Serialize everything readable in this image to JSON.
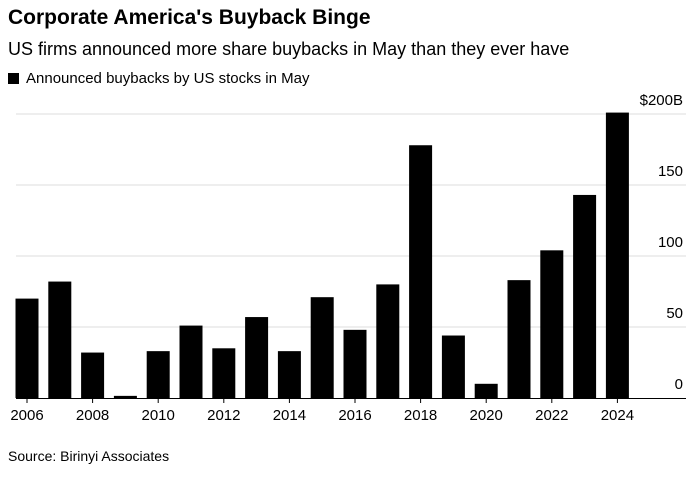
{
  "chart_data": {
    "type": "bar",
    "title": "Corporate America's Buyback Binge",
    "subtitle": "US firms announced more share buybacks in May than they ever have",
    "legend": [
      {
        "name": "Announced buybacks by US stocks in May",
        "color": "#000000"
      }
    ],
    "categories": [
      "2006",
      "2007",
      "2008",
      "2009",
      "2010",
      "2011",
      "2012",
      "2013",
      "2014",
      "2015",
      "2016",
      "2017",
      "2018",
      "2019",
      "2020",
      "2021",
      "2022",
      "2023",
      "2024"
    ],
    "values": [
      70,
      82,
      32,
      1.5,
      33,
      51,
      35,
      57,
      33,
      71,
      48,
      80,
      178,
      44,
      10,
      83,
      104,
      143,
      201
    ],
    "x_tick_labels": [
      "2006",
      "2008",
      "2010",
      "2012",
      "2014",
      "2016",
      "2018",
      "2020",
      "2022",
      "2024"
    ],
    "y_tick_labels": [
      "0",
      "50",
      "100",
      "150",
      "$200B"
    ],
    "y_ticks": [
      0,
      50,
      100,
      150,
      200
    ],
    "ylim": [
      0,
      200
    ],
    "unit": "$B",
    "grid": true,
    "legend_position": "top-left",
    "source": "Source: Birinyi Associates"
  }
}
